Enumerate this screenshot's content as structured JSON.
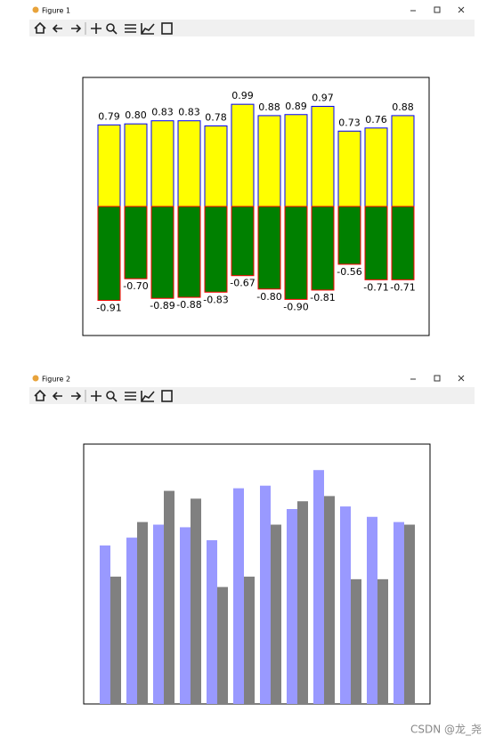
{
  "windows": [
    {
      "title": "Figure 1"
    },
    {
      "title": "Figure 2"
    }
  ],
  "watermark": "CSDN @龙_尧",
  "chart_data": [
    {
      "type": "bar",
      "layout": "diverging",
      "ylim": [
        -1.25,
        1.25
      ],
      "series": [
        {
          "color": "#ffff00",
          "edgecolor": "#0000ff",
          "values": [
            0.79,
            0.8,
            0.83,
            0.83,
            0.78,
            0.99,
            0.88,
            0.89,
            0.97,
            0.73,
            0.76,
            0.88
          ],
          "value_labels": [
            "0.79",
            "0.80",
            "0.83",
            "0.83",
            "0.78",
            "0.99",
            "0.88",
            "0.89",
            "0.97",
            "0.73",
            "0.76",
            "0.88"
          ]
        },
        {
          "color": "#008000",
          "edgecolor": "#ff0000",
          "values": [
            -0.91,
            -0.7,
            -0.89,
            -0.88,
            -0.83,
            -0.67,
            -0.8,
            -0.9,
            -0.81,
            -0.56,
            -0.71,
            -0.71
          ],
          "value_labels": [
            "-0.91",
            "-0.70",
            "-0.89",
            "-0.88",
            "-0.83",
            "-0.67",
            "-0.80",
            "-0.90",
            "-0.81",
            "-0.56",
            "-0.71",
            "-0.71"
          ]
        }
      ]
    },
    {
      "type": "bar",
      "layout": "grouped",
      "ylim": [
        0,
        1
      ],
      "series": [
        {
          "color": "#9999ff",
          "values": [
            0.61,
            0.64,
            0.69,
            0.68,
            0.63,
            0.83,
            0.84,
            0.75,
            0.9,
            0.76,
            0.72,
            0.7
          ]
        },
        {
          "color": "#808080",
          "values": [
            0.49,
            0.7,
            0.82,
            0.79,
            0.45,
            0.49,
            0.69,
            0.78,
            0.8,
            0.48,
            0.48,
            0.69
          ]
        }
      ]
    }
  ]
}
